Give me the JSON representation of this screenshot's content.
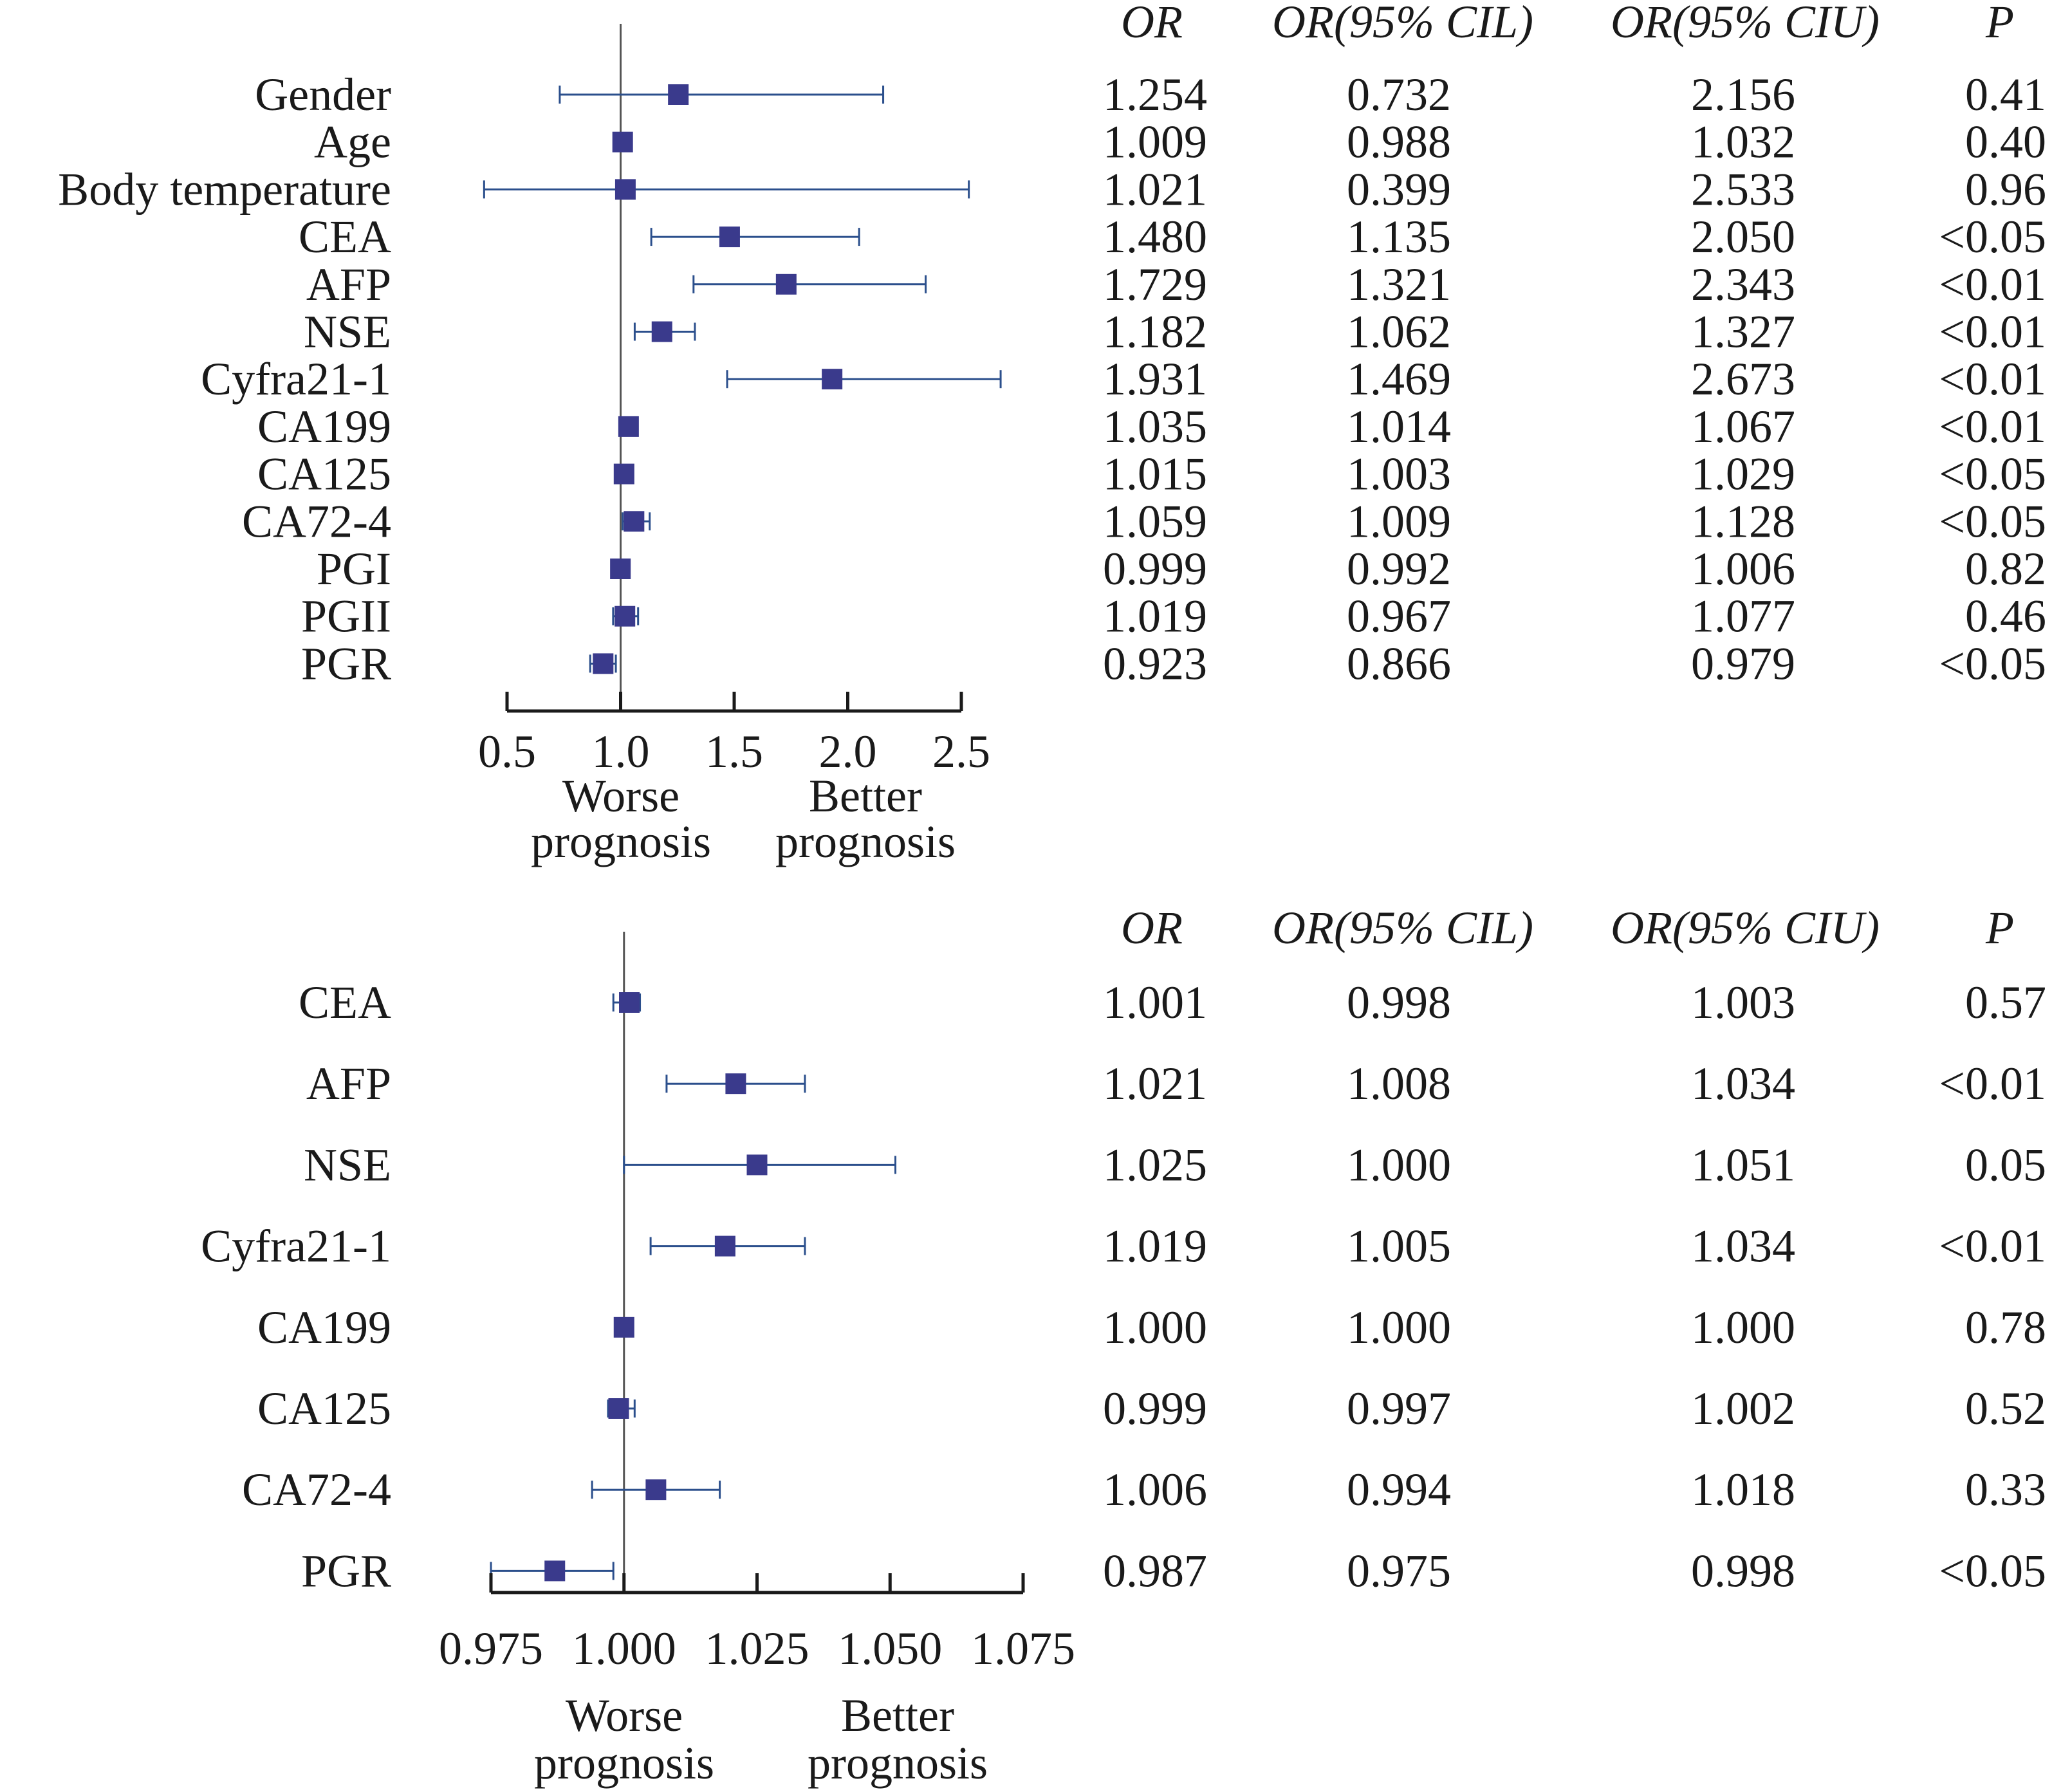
{
  "chart_data": [
    {
      "type": "forest",
      "xlim": [
        0.5,
        2.5
      ],
      "ticks": [
        0.5,
        1.0,
        1.5,
        2.0,
        2.5
      ],
      "tick_labels": [
        "0.5",
        "1.0",
        "1.5",
        "2.0",
        "2.5"
      ],
      "reference": 1.0,
      "headers": {
        "or": "OR",
        "cil": "OR(95% CIL)",
        "ciu": "OR(95% CIU)",
        "p": "P"
      },
      "left_label": [
        "Worse",
        "prognosis"
      ],
      "right_label": [
        "Better",
        "prognosis"
      ],
      "rows": [
        {
          "label": "Gender",
          "or": 1.254,
          "lo": 0.732,
          "hi": 2.156,
          "or_t": "1.254",
          "lo_t": "0.732",
          "hi_t": "2.156",
          "p": "0.41"
        },
        {
          "label": "Age",
          "or": 1.009,
          "lo": 0.988,
          "hi": 1.032,
          "or_t": "1.009",
          "lo_t": "0.988",
          "hi_t": "1.032",
          "p": "0.40"
        },
        {
          "label": "Body temperature",
          "or": 1.021,
          "lo": 0.399,
          "hi": 2.533,
          "or_t": "1.021",
          "lo_t": "0.399",
          "hi_t": "2.533",
          "p": "0.96"
        },
        {
          "label": "CEA",
          "or": 1.48,
          "lo": 1.135,
          "hi": 2.05,
          "or_t": "1.480",
          "lo_t": "1.135",
          "hi_t": "2.050",
          "p": "<0.05"
        },
        {
          "label": "AFP",
          "or": 1.729,
          "lo": 1.321,
          "hi": 2.343,
          "or_t": "1.729",
          "lo_t": "1.321",
          "hi_t": "2.343",
          "p": "<0.01"
        },
        {
          "label": "NSE",
          "or": 1.182,
          "lo": 1.062,
          "hi": 1.327,
          "or_t": "1.182",
          "lo_t": "1.062",
          "hi_t": "1.327",
          "p": "<0.01"
        },
        {
          "label": "Cyfra21-1",
          "or": 1.931,
          "lo": 1.469,
          "hi": 2.673,
          "or_t": "1.931",
          "lo_t": "1.469",
          "hi_t": "2.673",
          "p": "<0.01"
        },
        {
          "label": "CA199",
          "or": 1.035,
          "lo": 1.014,
          "hi": 1.067,
          "or_t": "1.035",
          "lo_t": "1.014",
          "hi_t": "1.067",
          "p": "<0.01"
        },
        {
          "label": "CA125",
          "or": 1.015,
          "lo": 1.003,
          "hi": 1.029,
          "or_t": "1.015",
          "lo_t": "1.003",
          "hi_t": "1.029",
          "p": "<0.05"
        },
        {
          "label": "CA72-4",
          "or": 1.059,
          "lo": 1.009,
          "hi": 1.128,
          "or_t": "1.059",
          "lo_t": "1.009",
          "hi_t": "1.128",
          "p": "<0.05"
        },
        {
          "label": "PGI",
          "or": 0.999,
          "lo": 0.992,
          "hi": 1.006,
          "or_t": "0.999",
          "lo_t": "0.992",
          "hi_t": "1.006",
          "p": "0.82"
        },
        {
          "label": "PGII",
          "or": 1.019,
          "lo": 0.967,
          "hi": 1.077,
          "or_t": "1.019",
          "lo_t": "0.967",
          "hi_t": "1.077",
          "p": "0.46"
        },
        {
          "label": "PGR",
          "or": 0.923,
          "lo": 0.866,
          "hi": 0.979,
          "or_t": "0.923",
          "lo_t": "0.866",
          "hi_t": "0.979",
          "p": "<0.05"
        }
      ]
    },
    {
      "type": "forest",
      "xlim": [
        0.975,
        1.075
      ],
      "ticks": [
        0.975,
        1.0,
        1.025,
        1.05,
        1.075
      ],
      "tick_labels": [
        "0.975",
        "1.000",
        "1.025",
        "1.050",
        "1.075"
      ],
      "reference": 1.0,
      "headers": {
        "or": "OR",
        "cil": "OR(95% CIL)",
        "ciu": "OR(95% CIU)",
        "p": "P"
      },
      "left_label": [
        "Worse",
        "prognosis"
      ],
      "right_label": [
        "Better",
        "prognosis"
      ],
      "rows": [
        {
          "label": "CEA",
          "or": 1.001,
          "lo": 0.998,
          "hi": 1.003,
          "or_t": "1.001",
          "lo_t": "0.998",
          "hi_t": "1.003",
          "p": "0.57"
        },
        {
          "label": "AFP",
          "or": 1.021,
          "lo": 1.008,
          "hi": 1.034,
          "or_t": "1.021",
          "lo_t": "1.008",
          "hi_t": "1.034",
          "p": "<0.01"
        },
        {
          "label": "NSE",
          "or": 1.025,
          "lo": 1.0,
          "hi": 1.051,
          "or_t": "1.025",
          "lo_t": "1.000",
          "hi_t": "1.051",
          "p": "0.05"
        },
        {
          "label": "Cyfra21-1",
          "or": 1.019,
          "lo": 1.005,
          "hi": 1.034,
          "or_t": "1.019",
          "lo_t": "1.005",
          "hi_t": "1.034",
          "p": "<0.01"
        },
        {
          "label": "CA199",
          "or": 1.0,
          "lo": 1.0,
          "hi": 1.0,
          "or_t": "1.000",
          "lo_t": "1.000",
          "hi_t": "1.000",
          "p": "0.78"
        },
        {
          "label": "CA125",
          "or": 0.999,
          "lo": 0.997,
          "hi": 1.002,
          "or_t": "0.999",
          "lo_t": "0.997",
          "hi_t": "1.002",
          "p": "0.52"
        },
        {
          "label": "CA72-4",
          "or": 1.006,
          "lo": 0.994,
          "hi": 1.018,
          "or_t": "1.006",
          "lo_t": "0.994",
          "hi_t": "1.018",
          "p": "0.33"
        },
        {
          "label": "PGR",
          "or": 0.987,
          "lo": 0.975,
          "hi": 0.998,
          "or_t": "0.987",
          "lo_t": "0.975",
          "hi_t": "0.998",
          "p": "<0.05"
        }
      ]
    }
  ],
  "colors": {
    "marker": "#3a3a8c",
    "whisker": "#2b4f8c",
    "axis": "#1a1a1a",
    "text": "#1a1a1a"
  }
}
